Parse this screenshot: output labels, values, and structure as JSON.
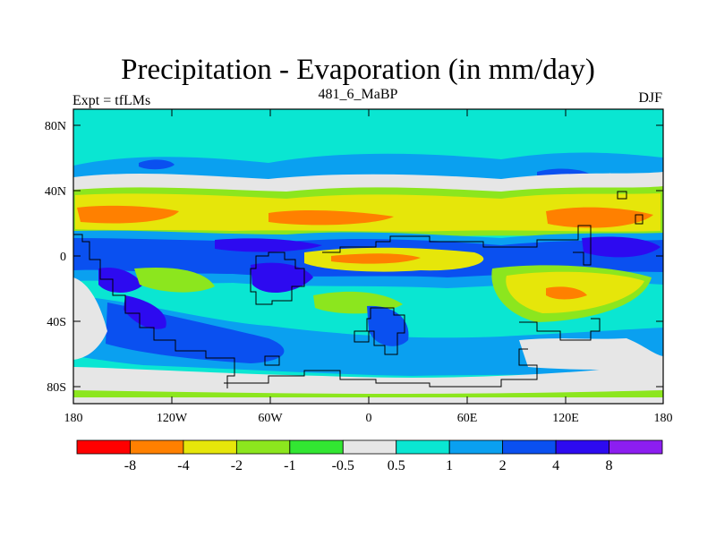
{
  "title": "Precipitation - Evaporation (in mm/day)",
  "left_string": "Expt = tfLMs",
  "center_string": "481_6_MaBP",
  "right_string": "DJF",
  "y_tick_labels": [
    "80N",
    "40N",
    "0",
    "40S",
    "80S"
  ],
  "x_tick_labels": [
    "180",
    "120W",
    "60W",
    "0",
    "60E",
    "120E",
    "180"
  ],
  "colorbar": {
    "levels": [
      "-8",
      "-4",
      "-2",
      "-1",
      "-0.5",
      "0.5",
      "1",
      "2",
      "4",
      "8"
    ],
    "colors": [
      "#ff0000",
      "#ff8000",
      "#e6e60a",
      "#8ce61e",
      "#32e632",
      "#e6e6e6",
      "#0ae6d2",
      "#0aa0f0",
      "#0a50f0",
      "#2d0af0",
      "#8c1ef0"
    ]
  },
  "map_colors": {
    "background": "#0ae6d2",
    "polar_south": "#e6e6e6",
    "dry_strong": "#ff8000",
    "dry_mid": "#e6e60a",
    "dry_light": "#8ce61e",
    "wet_light": "#0aa0f0",
    "wet_mid": "#0a50f0",
    "wet_strong": "#2d0af0",
    "wet_max": "#8c1ef0",
    "neutral": "#e6e6e6",
    "near_zero_dry": "#32e632"
  }
}
